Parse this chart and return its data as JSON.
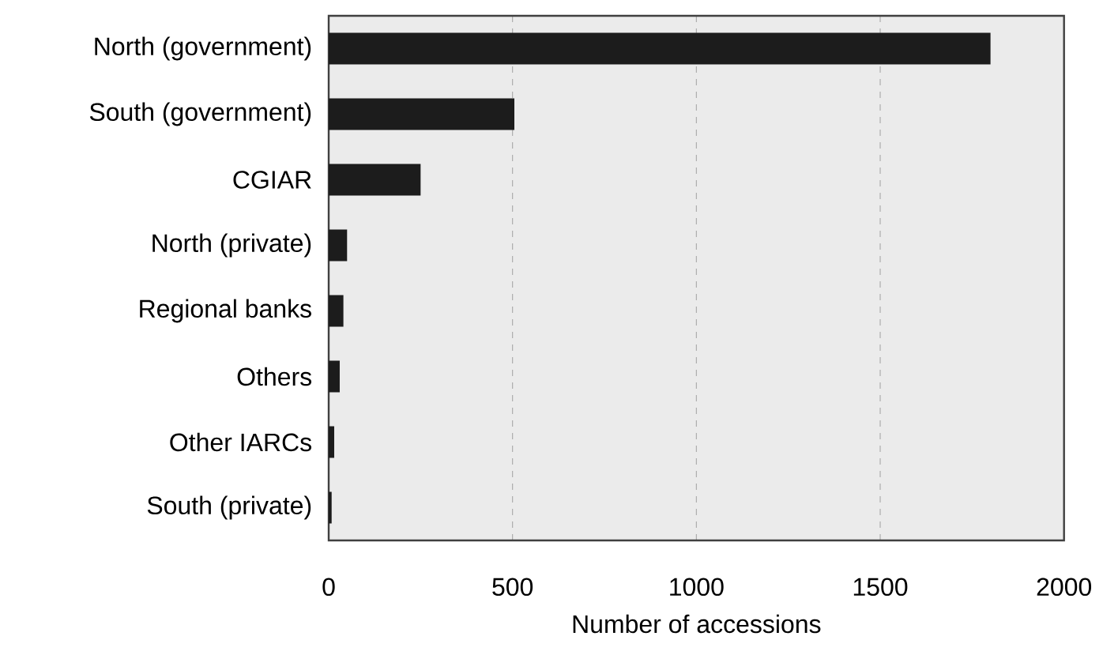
{
  "chart_data": {
    "type": "bar",
    "orientation": "horizontal",
    "xlabel": "Number of accessions",
    "categories": [
      "North (government)",
      "South (government)",
      "CGIAR",
      "North (private)",
      "Regional banks",
      "Others",
      "Other IARCs",
      "South (private)"
    ],
    "values": [
      1800,
      505,
      250,
      50,
      40,
      30,
      15,
      8
    ],
    "color": "#1c1c1c",
    "xlim": [
      0,
      2000
    ],
    "xticks": [
      0,
      500,
      1000,
      1500,
      2000
    ],
    "grid": "x"
  }
}
